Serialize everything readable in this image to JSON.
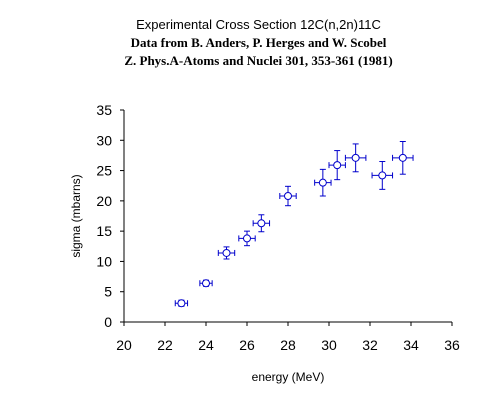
{
  "chart_data": {
    "type": "scatter",
    "title": "Experimental Cross Section 12C(n,2n)11C",
    "subtitle": "Data from B. Anders, P. Herges and W. Scobel",
    "subtitle2": "Z. Phys.A-Atoms and Nuclei 301, 353-361 (1981)",
    "xlabel": "energy (MeV)",
    "ylabel": "sigma (mbarns)",
    "xlim": [
      20,
      36
    ],
    "ylim": [
      0,
      35
    ],
    "xticks": [
      20,
      22,
      24,
      26,
      28,
      30,
      32,
      34,
      36
    ],
    "yticks": [
      0,
      5,
      10,
      15,
      20,
      25,
      30,
      35
    ],
    "grid": false,
    "marker": "open-circle",
    "color": "#0000CC",
    "points": [
      {
        "x": 22.8,
        "y": 3.1,
        "xerr": 0.3,
        "yerr": 0.5
      },
      {
        "x": 24.0,
        "y": 6.4,
        "xerr": 0.3,
        "yerr": 0.5
      },
      {
        "x": 25.0,
        "y": 11.4,
        "xerr": 0.4,
        "yerr": 1.0
      },
      {
        "x": 26.0,
        "y": 13.8,
        "xerr": 0.4,
        "yerr": 1.2
      },
      {
        "x": 26.7,
        "y": 16.3,
        "xerr": 0.4,
        "yerr": 1.4
      },
      {
        "x": 28.0,
        "y": 20.8,
        "xerr": 0.4,
        "yerr": 1.6
      },
      {
        "x": 29.7,
        "y": 23.0,
        "xerr": 0.4,
        "yerr": 2.2
      },
      {
        "x": 30.4,
        "y": 25.9,
        "xerr": 0.4,
        "yerr": 2.4
      },
      {
        "x": 31.3,
        "y": 27.1,
        "xerr": 0.5,
        "yerr": 2.3
      },
      {
        "x": 32.6,
        "y": 24.2,
        "xerr": 0.5,
        "yerr": 2.3
      },
      {
        "x": 33.6,
        "y": 27.1,
        "xerr": 0.5,
        "yerr": 2.7
      }
    ]
  }
}
